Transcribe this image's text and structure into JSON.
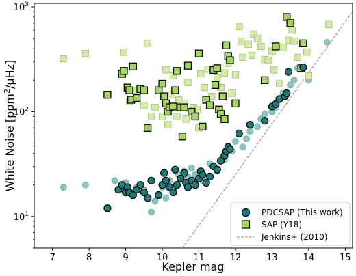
{
  "chart_data": {
    "type": "scatter",
    "xlabel": "Kepler mag",
    "ylabel_main": "White Noise [ppm",
    "ylabel_sup": "2",
    "ylabel_tail": "/μHz]",
    "xlim": [
      6.5,
      15.2
    ],
    "ylim": [
      5,
      1080
    ],
    "yscale": "log",
    "grid": false,
    "legend_position": "bottom-right",
    "xticks": [
      7,
      8,
      9,
      10,
      11,
      12,
      13,
      14,
      15
    ],
    "yticks": [
      {
        "value": 10,
        "base": "10",
        "exp": "1"
      },
      {
        "value": 100,
        "base": "10",
        "exp": "2"
      },
      {
        "value": 1000,
        "base": "10",
        "exp": "3"
      }
    ],
    "colors": {
      "pdcsap": "#1f7b78",
      "pdcsap_light": "#8cc4c1",
      "sap": "#a4d65e",
      "sap_light": "#d3eaa8",
      "jenkins": "#808080"
    },
    "series": [
      {
        "name": "PDCSAP (This work)",
        "marker": "circle",
        "highlighted": [
          [
            8.5,
            12
          ],
          [
            8.8,
            18
          ],
          [
            8.9,
            20
          ],
          [
            9.0,
            17
          ],
          [
            9.05,
            19
          ],
          [
            9.1,
            17
          ],
          [
            9.2,
            16
          ],
          [
            9.3,
            18
          ],
          [
            9.4,
            20
          ],
          [
            9.5,
            17
          ],
          [
            9.6,
            15
          ],
          [
            9.7,
            22
          ],
          [
            9.9,
            16
          ],
          [
            10.0,
            20
          ],
          [
            10.05,
            26
          ],
          [
            10.1,
            22
          ],
          [
            10.2,
            19
          ],
          [
            10.3,
            17
          ],
          [
            10.35,
            28
          ],
          [
            10.4,
            20
          ],
          [
            10.5,
            23
          ],
          [
            10.6,
            26
          ],
          [
            10.65,
            21
          ],
          [
            10.7,
            19
          ],
          [
            10.8,
            22
          ],
          [
            10.9,
            20
          ],
          [
            11.0,
            23
          ],
          [
            11.05,
            27
          ],
          [
            11.1,
            25
          ],
          [
            11.2,
            21
          ],
          [
            11.3,
            24
          ],
          [
            11.4,
            30
          ],
          [
            11.5,
            28
          ],
          [
            11.6,
            34
          ],
          [
            11.7,
            38
          ],
          [
            11.75,
            42
          ],
          [
            11.8,
            46
          ],
          [
            11.85,
            44
          ],
          [
            12.1,
            62
          ],
          [
            12.4,
            75
          ],
          [
            12.8,
            82
          ],
          [
            13.0,
            112
          ],
          [
            13.1,
            118
          ],
          [
            13.2,
            132
          ],
          [
            13.35,
            140
          ],
          [
            13.4,
            150
          ],
          [
            13.45,
            240
          ],
          [
            13.85,
            265
          ]
        ],
        "faint": [
          [
            7.3,
            19
          ],
          [
            7.9,
            20
          ],
          [
            8.7,
            22
          ],
          [
            9.0,
            21
          ],
          [
            9.3,
            19
          ],
          [
            9.5,
            18
          ],
          [
            9.7,
            11
          ],
          [
            9.8,
            14
          ],
          [
            10.0,
            19
          ],
          [
            10.1,
            15
          ],
          [
            10.2,
            22
          ],
          [
            10.3,
            18
          ],
          [
            10.45,
            25
          ],
          [
            10.6,
            27
          ],
          [
            10.7,
            24
          ],
          [
            10.8,
            29
          ],
          [
            10.9,
            25
          ],
          [
            11.1,
            22
          ],
          [
            11.3,
            32
          ],
          [
            11.5,
            27
          ],
          [
            11.7,
            35
          ],
          [
            11.9,
            42
          ],
          [
            12.0,
            52
          ],
          [
            12.2,
            46
          ],
          [
            12.3,
            55
          ],
          [
            12.4,
            65
          ],
          [
            12.6,
            72
          ],
          [
            12.7,
            85
          ],
          [
            12.8,
            95
          ],
          [
            13.0,
            100
          ],
          [
            13.1,
            110
          ],
          [
            13.3,
            150
          ],
          [
            13.5,
            180
          ],
          [
            13.6,
            200
          ],
          [
            13.7,
            260
          ],
          [
            14.0,
            200
          ],
          [
            14.5,
            460
          ]
        ]
      },
      {
        "name": "SAP (Y18)",
        "marker": "square",
        "highlighted": [
          [
            8.5,
            145
          ],
          [
            8.9,
            230
          ],
          [
            8.95,
            245
          ],
          [
            9.05,
            170
          ],
          [
            9.1,
            160
          ],
          [
            9.15,
            130
          ],
          [
            9.2,
            270
          ],
          [
            9.3,
            135
          ],
          [
            9.4,
            165
          ],
          [
            9.5,
            160
          ],
          [
            9.6,
            70
          ],
          [
            9.9,
            160
          ],
          [
            10.0,
            185
          ],
          [
            10.05,
            140
          ],
          [
            10.1,
            120
          ],
          [
            10.15,
            100
          ],
          [
            10.2,
            110
          ],
          [
            10.3,
            112
          ],
          [
            10.35,
            160
          ],
          [
            10.4,
            245
          ],
          [
            10.5,
            110
          ],
          [
            10.55,
            58
          ],
          [
            10.6,
            110
          ],
          [
            10.7,
            275
          ],
          [
            10.8,
            100
          ],
          [
            10.9,
            90
          ],
          [
            11.0,
            360
          ],
          [
            11.1,
            72
          ],
          [
            11.2,
            130
          ],
          [
            11.3,
            115
          ],
          [
            11.4,
            250
          ],
          [
            11.45,
            180
          ],
          [
            11.5,
            260
          ],
          [
            11.55,
            105
          ],
          [
            11.6,
            95
          ],
          [
            11.65,
            140
          ],
          [
            11.7,
            85
          ],
          [
            11.75,
            430
          ],
          [
            11.8,
            340
          ],
          [
            11.85,
            310
          ],
          [
            12.0,
            120
          ],
          [
            12.8,
            200
          ],
          [
            13.1,
            420
          ],
          [
            13.4,
            800
          ],
          [
            13.5,
            700
          ],
          [
            13.8,
            260
          ],
          [
            13.85,
            450
          ]
        ],
        "faint": [
          [
            7.3,
            320
          ],
          [
            7.9,
            360
          ],
          [
            8.95,
            370
          ],
          [
            9.1,
            125
          ],
          [
            9.3,
            160
          ],
          [
            9.5,
            115
          ],
          [
            9.6,
            450
          ],
          [
            9.7,
            90
          ],
          [
            9.8,
            110
          ],
          [
            10.0,
            90
          ],
          [
            10.1,
            250
          ],
          [
            10.15,
            75
          ],
          [
            10.25,
            145
          ],
          [
            10.3,
            220
          ],
          [
            10.4,
            90
          ],
          [
            10.45,
            130
          ],
          [
            10.6,
            120
          ],
          [
            10.65,
            85
          ],
          [
            10.7,
            190
          ],
          [
            10.85,
            110
          ],
          [
            10.95,
            105
          ],
          [
            11.0,
            70
          ],
          [
            11.05,
            230
          ],
          [
            11.15,
            170
          ],
          [
            11.25,
            255
          ],
          [
            11.35,
            140
          ],
          [
            11.5,
            210
          ],
          [
            11.6,
            170
          ],
          [
            11.7,
            235
          ],
          [
            11.8,
            290
          ],
          [
            11.9,
            150
          ],
          [
            12.0,
            225
          ],
          [
            12.1,
            650
          ],
          [
            12.15,
            470
          ],
          [
            12.2,
            330
          ],
          [
            12.35,
            440
          ],
          [
            12.45,
            345
          ],
          [
            12.5,
            550
          ],
          [
            12.6,
            500
          ],
          [
            12.7,
            420
          ],
          [
            12.8,
            315
          ],
          [
            12.9,
            310
          ],
          [
            13.0,
            380
          ],
          [
            13.05,
            250
          ],
          [
            13.2,
            185
          ],
          [
            13.3,
            410
          ],
          [
            13.45,
            480
          ],
          [
            13.55,
            600
          ],
          [
            13.6,
            470
          ],
          [
            13.7,
            330
          ],
          [
            13.95,
            370
          ],
          [
            14.0,
            220
          ],
          [
            14.55,
            680
          ]
        ]
      },
      {
        "name": "Jenkins+ (2010)",
        "marker": "line",
        "points": [
          [
            10.55,
            5
          ],
          [
            15.2,
            900
          ]
        ]
      }
    ]
  }
}
